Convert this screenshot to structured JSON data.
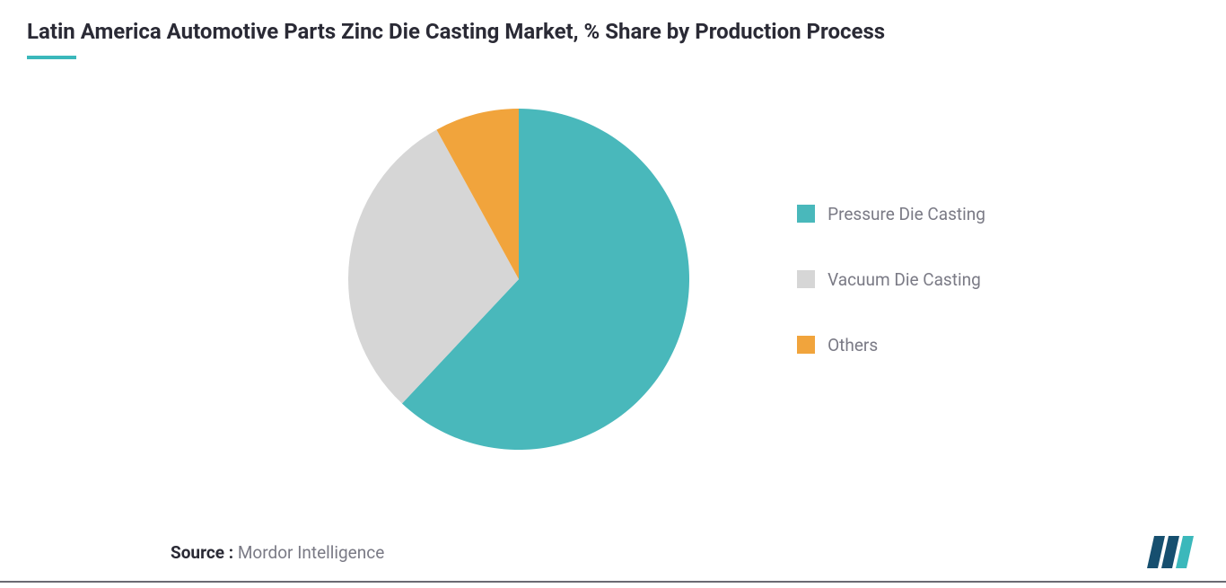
{
  "chart": {
    "type": "pie",
    "title": "Latin America Automotive Parts Zinc Die Casting Market, % Share by Production Process",
    "title_fontsize": 24,
    "title_color": "#2a2a35",
    "accent_color": "#3bb8bb",
    "background_color": "#ffffff",
    "pie_radius": 190,
    "slices": [
      {
        "label": "Pressure Die Casting",
        "value": 62,
        "color": "#49b8bb"
      },
      {
        "label": "Vacuum Die Casting",
        "value": 30,
        "color": "#d6d6d6"
      },
      {
        "label": "Others",
        "value": 8,
        "color": "#f1a43c"
      }
    ],
    "legend_fontsize": 19,
    "legend_color": "#7a7a85",
    "legend_swatch_size": 20
  },
  "footer": {
    "source_label": "Source :",
    "source_value": "Mordor Intelligence",
    "fontsize": 19,
    "label_color": "#2a2a35",
    "value_color": "#7a7a85"
  },
  "logo": {
    "name": "mordor-intelligence-logo",
    "bar_colors": [
      "#164f6f",
      "#164f6f",
      "#3bb8bb"
    ]
  }
}
